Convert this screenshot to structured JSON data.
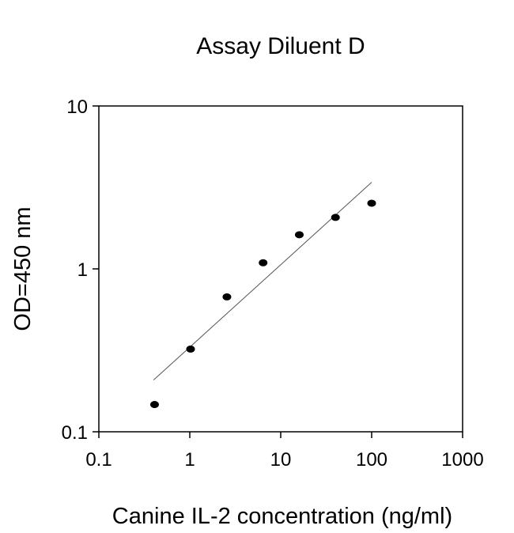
{
  "chart_data": {
    "type": "scatter",
    "title": "Assay Diluent D",
    "xlabel": "Canine IL-2 concentration (ng/ml)",
    "ylabel": "OD=450 nm",
    "xscale": "log",
    "yscale": "log",
    "xlim": [
      0.1,
      1000
    ],
    "ylim": [
      0.1,
      10
    ],
    "x_ticks": [
      "0.1",
      "1",
      "10",
      "100",
      "1000"
    ],
    "y_ticks": [
      "0.1",
      "1",
      "10"
    ],
    "grid": false,
    "legend": "none",
    "series": [
      {
        "points": [
          {
            "x": 0.41,
            "y": 0.147
          },
          {
            "x": 1.02,
            "y": 0.322
          },
          {
            "x": 2.56,
            "y": 0.673
          },
          {
            "x": 6.4,
            "y": 1.09
          },
          {
            "x": 16,
            "y": 1.62
          },
          {
            "x": 40,
            "y": 2.07
          },
          {
            "x": 100,
            "y": 2.53
          }
        ],
        "color": "#000000"
      }
    ],
    "fit_line": {
      "points": [
        {
          "x": 0.4,
          "y": 0.208
        },
        {
          "x": 100,
          "y": 3.4
        }
      ],
      "color": "#555555"
    }
  }
}
